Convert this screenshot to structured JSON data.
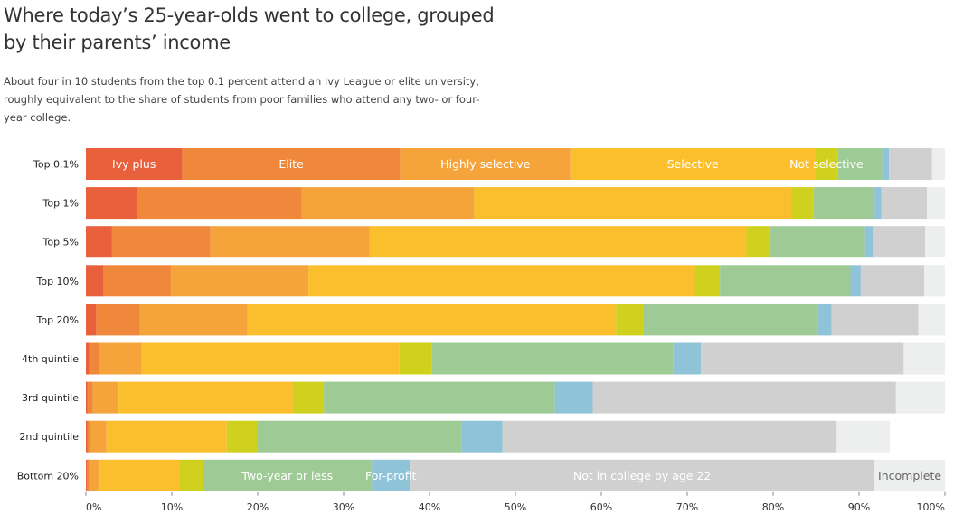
{
  "header": {
    "title": "Where today’s 25-year-olds went to college, grouped by their parents’ income",
    "subtitle": "About four in 10 students from the top 0.1 percent attend an Ivy League or elite university, roughly equivalent to the share of students from poor families who attend any two- or four-year college."
  },
  "chart_data": {
    "type": "bar",
    "orientation": "horizontal",
    "stacked": true,
    "xlim": [
      0,
      100
    ],
    "x_tick_labels": [
      "0%",
      "10%",
      "20%",
      "30%",
      "40%",
      "50%",
      "60%",
      "70%",
      "80%",
      "90%",
      "100%"
    ],
    "categories": [
      "Top 0.1%",
      "Top 1%",
      "Top 5%",
      "Top 10%",
      "Top 20%",
      "4th quintile",
      "3rd quintile",
      "2nd quintile",
      "Bottom 20%"
    ],
    "series": [
      {
        "name": "Ivy plus",
        "color": "#e8603c",
        "values": [
          11.2,
          5.9,
          3.0,
          2.0,
          1.2,
          0.4,
          0.2,
          0.2,
          0.1
        ]
      },
      {
        "name": "Elite",
        "color": "#ef883a",
        "values": [
          25.4,
          19.2,
          11.5,
          7.9,
          5.1,
          1.1,
          0.6,
          0.3,
          0.3
        ]
      },
      {
        "name": "Highly selective",
        "color": "#f5a43c",
        "values": [
          19.8,
          20.1,
          18.5,
          16.0,
          12.5,
          5.0,
          3.0,
          1.9,
          1.2
        ]
      },
      {
        "name": "Selective",
        "color": "#fbbf2e",
        "values": [
          28.5,
          36.9,
          43.9,
          45.0,
          42.9,
          30.0,
          20.3,
          14.0,
          9.3
        ]
      },
      {
        "name": "Not selective",
        "color": "#cfd11e",
        "values": [
          2.6,
          2.6,
          2.8,
          2.9,
          3.2,
          3.8,
          3.6,
          3.5,
          2.7
        ]
      },
      {
        "name": "Two-year or less",
        "color": "#9ecb95",
        "values": [
          5.2,
          7.1,
          11.0,
          15.2,
          20.3,
          28.1,
          26.9,
          23.8,
          19.7
        ]
      },
      {
        "name": "For-profit",
        "color": "#8fc3d8",
        "values": [
          0.8,
          0.8,
          0.9,
          1.2,
          1.6,
          3.2,
          4.4,
          4.8,
          4.4
        ]
      },
      {
        "name": "Not in college by age 22",
        "color": "#d0d0d0",
        "values": [
          5.0,
          5.3,
          6.1,
          7.4,
          10.1,
          23.6,
          35.3,
          38.9,
          54.1
        ]
      },
      {
        "name": "Incomplete",
        "color": "#edeeee",
        "values": [
          1.5,
          2.1,
          2.3,
          2.4,
          3.1,
          4.8,
          5.7,
          6.2,
          8.2
        ]
      }
    ],
    "segment_labels": [
      {
        "category": "Top 0.1%",
        "series": "Ivy plus",
        "text": "Ivy plus"
      },
      {
        "category": "Top 0.1%",
        "series": "Elite",
        "text": "Elite"
      },
      {
        "category": "Top 0.1%",
        "series": "Highly selective",
        "text": "Highly selective"
      },
      {
        "category": "Top 0.1%",
        "series": "Selective",
        "text": "Selective"
      },
      {
        "category": "Top 0.1%",
        "series": "Not selective",
        "text": "Not selective"
      },
      {
        "category": "Bottom 20%",
        "series": "Two-year or less",
        "text": "Two-year or less"
      },
      {
        "category": "Bottom 20%",
        "series": "For-profit",
        "text": "For-profit"
      },
      {
        "category": "Bottom 20%",
        "series": "Not in college by age 22",
        "text": "Not in college by age 22"
      },
      {
        "category": "Bottom 20%",
        "series": "Incomplete",
        "text": "Incomplete"
      }
    ],
    "label_colors": {
      "light": "#ffffff",
      "dark": "#666666"
    },
    "grid": false,
    "legend": "none"
  }
}
